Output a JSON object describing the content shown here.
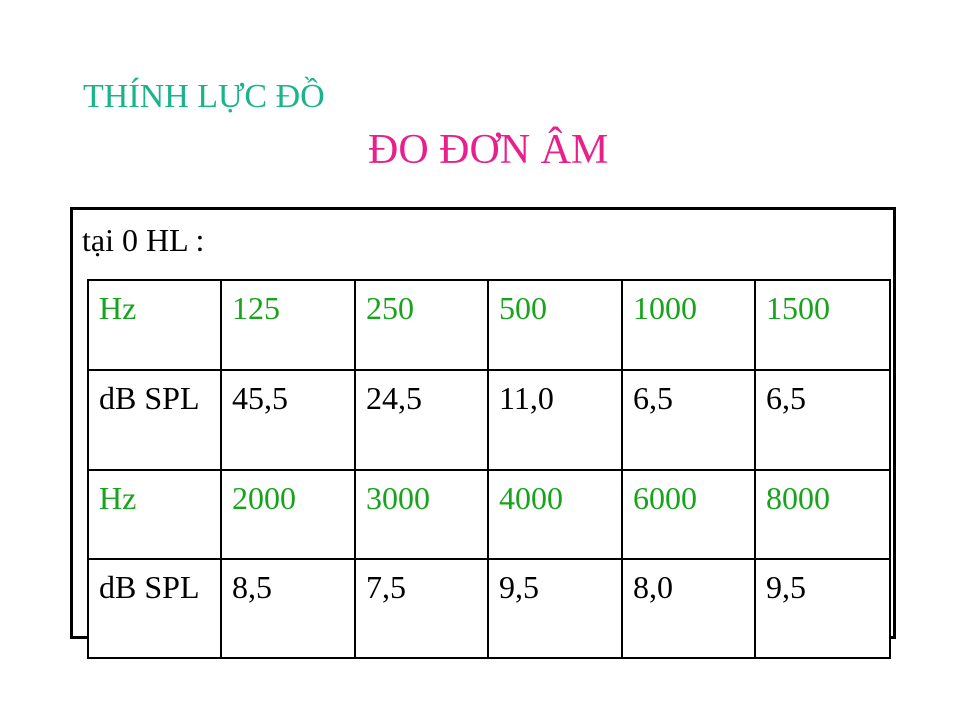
{
  "title": "THÍNH LỰC ĐỒ",
  "subtitle": "ĐO ĐƠN ÂM",
  "box_label": "tại 0 HL :",
  "colors": {
    "title": "#19b48a",
    "subtitle": "#e8208c",
    "frequency_row": "#17a31c",
    "spl_row": "#000000"
  },
  "table": {
    "rows": [
      {
        "type": "frequency",
        "cells": [
          "Hz",
          "125",
          "250",
          "500",
          "1000",
          "1500"
        ]
      },
      {
        "type": "spl",
        "cells": [
          "dB SPL",
          "45,5",
          "24,5",
          "11,0",
          "6,5",
          "6,5"
        ]
      },
      {
        "type": "frequency",
        "cells": [
          "Hz",
          "2000",
          "3000",
          "4000",
          "6000",
          "8000"
        ]
      },
      {
        "type": "spl",
        "cells": [
          "dB SPL",
          "8,5",
          "7,5",
          "9,5",
          "8,0",
          "9,5"
        ]
      }
    ]
  }
}
